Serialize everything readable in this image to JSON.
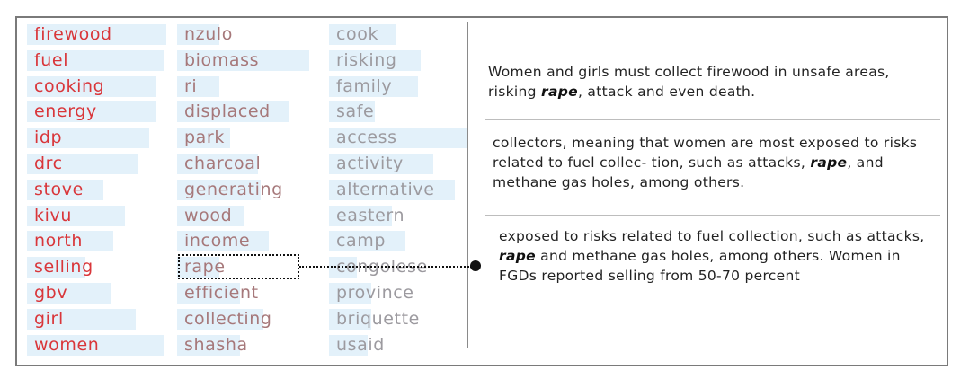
{
  "columns": [
    {
      "color": "#d9363a",
      "terms": [
        {
          "word": "firewood",
          "weight": 1.0
        },
        {
          "word": "fuel",
          "weight": 0.98
        },
        {
          "word": "cooking",
          "weight": 0.93
        },
        {
          "word": "energy",
          "weight": 0.92
        },
        {
          "word": "idp",
          "weight": 0.88
        },
        {
          "word": "drc",
          "weight": 0.8
        },
        {
          "word": "stove",
          "weight": 0.55
        },
        {
          "word": "kivu",
          "weight": 0.7
        },
        {
          "word": "north",
          "weight": 0.62
        },
        {
          "word": "selling",
          "weight": 0.42
        },
        {
          "word": "gbv",
          "weight": 0.6
        },
        {
          "word": "girl",
          "weight": 0.78
        },
        {
          "word": "women",
          "weight": 0.99
        }
      ]
    },
    {
      "color": "#a6787a",
      "terms": [
        {
          "word": "nzulo",
          "weight": 0.3
        },
        {
          "word": "biomass",
          "weight": 0.95
        },
        {
          "word": "ri",
          "weight": 0.3
        },
        {
          "word": "displaced",
          "weight": 0.8
        },
        {
          "word": "park",
          "weight": 0.38
        },
        {
          "word": "charcoal",
          "weight": 0.58
        },
        {
          "word": "generating",
          "weight": 0.6
        },
        {
          "word": "wood",
          "weight": 0.48
        },
        {
          "word": "income",
          "weight": 0.66
        },
        {
          "word": "rape",
          "weight": 0.3
        },
        {
          "word": "efficient",
          "weight": 0.45
        },
        {
          "word": "collecting",
          "weight": 0.62
        },
        {
          "word": "shasha",
          "weight": 0.45
        }
      ]
    },
    {
      "color": "#9c9a9f",
      "terms": [
        {
          "word": "cook",
          "weight": 0.48
        },
        {
          "word": "risking",
          "weight": 0.66
        },
        {
          "word": "family",
          "weight": 0.64
        },
        {
          "word": "safe",
          "weight": 0.33
        },
        {
          "word": "access",
          "weight": 1.0
        },
        {
          "word": "activity",
          "weight": 0.75
        },
        {
          "word": "alternative",
          "weight": 0.9
        },
        {
          "word": "eastern",
          "weight": 0.45
        },
        {
          "word": "camp",
          "weight": 0.55
        },
        {
          "word": "congolese",
          "weight": 0.2
        },
        {
          "word": "province",
          "weight": 0.3
        },
        {
          "word": "briquette",
          "weight": 0.3
        },
        {
          "word": "usaid",
          "weight": 0.28
        }
      ]
    }
  ],
  "documents": [
    {
      "before": "Women and girls must collect firewood in unsafe areas, risking ",
      "highlight": "rape",
      "after": ", attack and even death."
    },
    {
      "before": "collectors, meaning that women are most exposed to risks related to fuel collec- tion, such as attacks, ",
      "highlight": "rape",
      "after": ", and methane gas holes, among others."
    },
    {
      "before": "exposed to risks related to fuel collection, such as attacks, ",
      "highlight": "rape",
      "after": " and methane gas holes, among others. Women in FGDs reported selling from 50-70 percent"
    }
  ],
  "selected_term": "rape"
}
